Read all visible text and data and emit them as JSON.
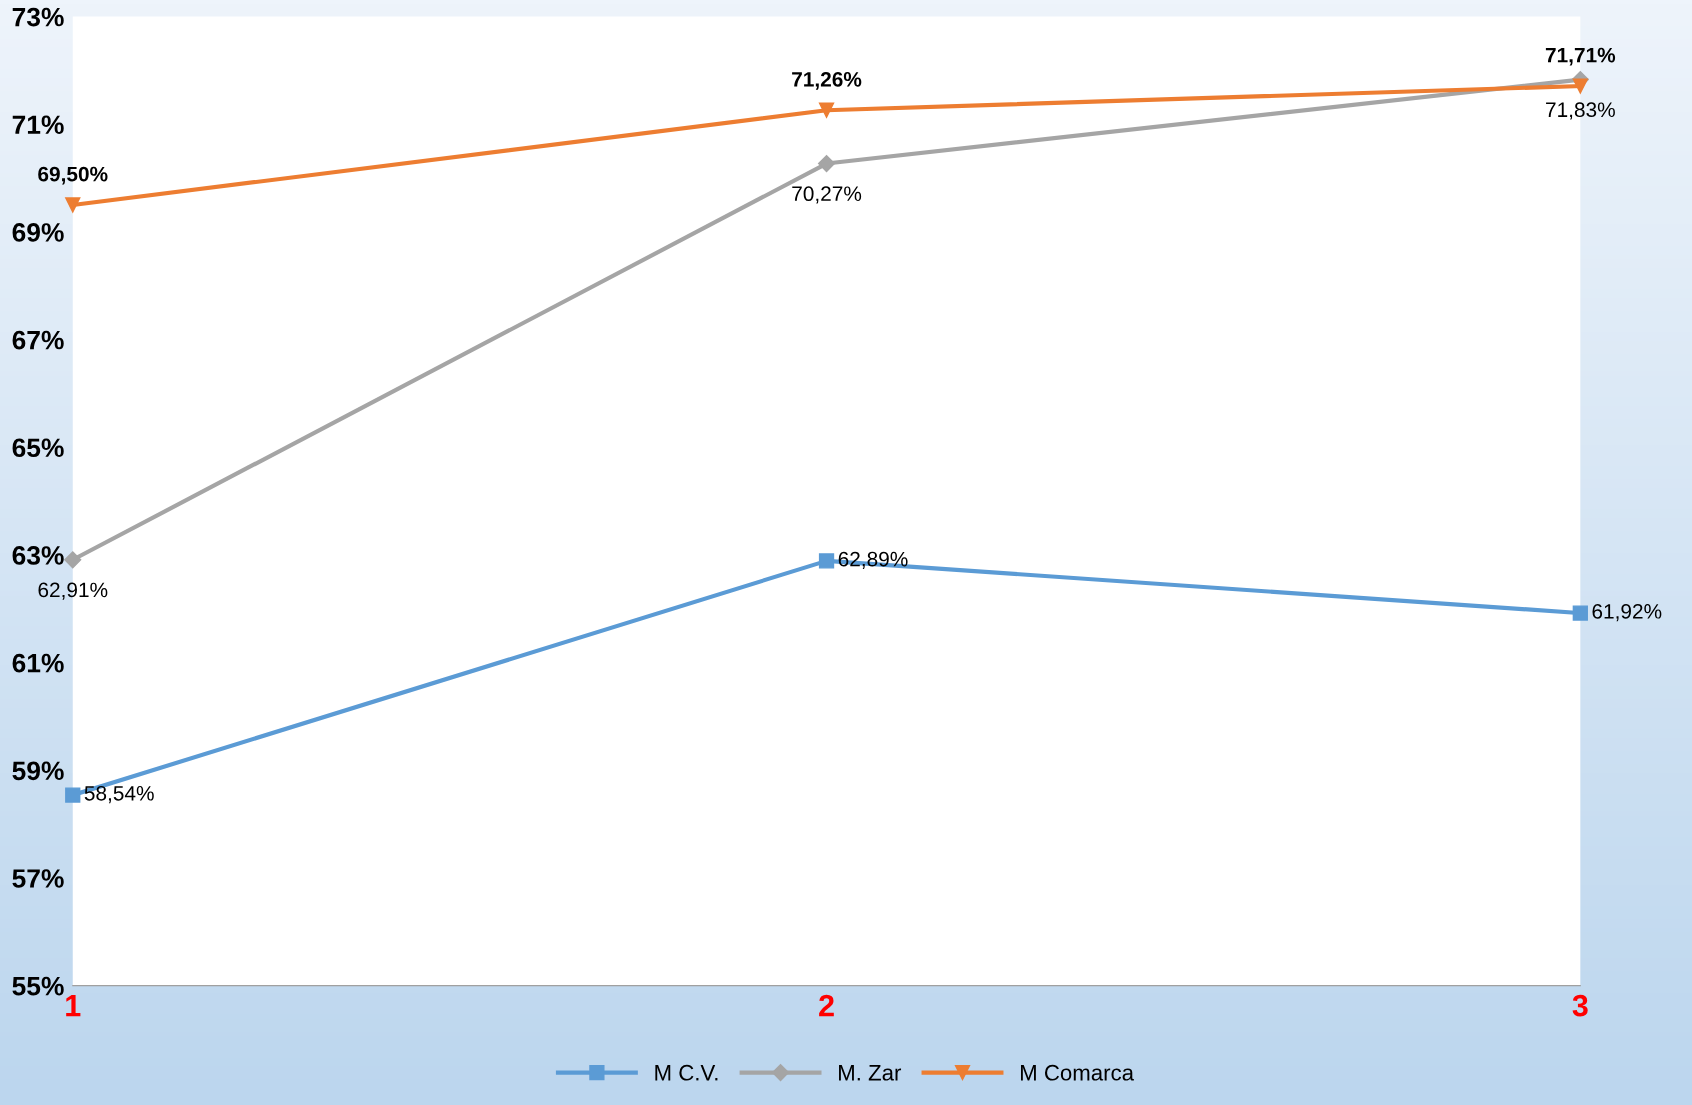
{
  "chart_data": {
    "type": "line",
    "categories": [
      "1",
      "2",
      "3"
    ],
    "series": [
      {
        "name": "M C.V.",
        "color": "#5b9bd5",
        "marker": "square",
        "values": [
          58.54,
          62.89,
          61.92
        ],
        "value_labels": [
          "58,54%",
          "62,89%",
          "61,92%"
        ]
      },
      {
        "name": "M. Zar",
        "color": "#a5a5a5",
        "marker": "diamond",
        "values": [
          62.91,
          70.27,
          71.83
        ],
        "value_labels": [
          "62,91%",
          "70,27%",
          "71,83%"
        ]
      },
      {
        "name": "M Comarca",
        "color": "#ed7d31",
        "marker": "triangle",
        "values": [
          69.5,
          71.26,
          71.71
        ],
        "value_labels": [
          "69,50%",
          "71,26%",
          "71,71%"
        ]
      }
    ],
    "ylim": [
      55,
      73
    ],
    "yticks": [
      {
        "value": 55,
        "label": "55%"
      },
      {
        "value": 57,
        "label": "57%"
      },
      {
        "value": 59,
        "label": "59%"
      },
      {
        "value": 61,
        "label": "61%"
      },
      {
        "value": 63,
        "label": "63%"
      },
      {
        "value": 65,
        "label": "65%"
      },
      {
        "value": 67,
        "label": "67%"
      },
      {
        "value": 69,
        "label": "69%"
      },
      {
        "value": 71,
        "label": "71%"
      },
      {
        "value": 73,
        "label": "73%"
      }
    ],
    "grid": false,
    "legend": "bottom"
  }
}
